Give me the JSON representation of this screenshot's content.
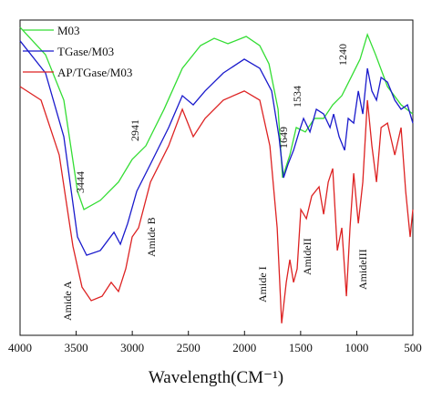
{
  "chart_data": {
    "type": "line",
    "x_label": "Wavelength(CM⁻¹)",
    "xlim": [
      4000,
      500
    ],
    "xticks": [
      4000,
      3500,
      3000,
      2500,
      2000,
      1500,
      1000,
      500
    ],
    "ylim": [
      0,
      100
    ],
    "legend": "upper-left",
    "series": [
      {
        "name": "M03",
        "color": "#33dd33",
        "x": [
          4000,
          3773,
          3610,
          3488,
          3431,
          3285,
          3123,
          3001,
          2879,
          2717,
          2554,
          2392,
          2270,
          2148,
          1985,
          1864,
          1782,
          1701,
          1661,
          1596,
          1539,
          1458,
          1376,
          1295,
          1214,
          1133,
          1051,
          970,
          905,
          832,
          726,
          605,
          500
        ],
        "values": [
          97.7,
          89.0,
          74.6,
          45.7,
          39.9,
          42.8,
          48.6,
          55.8,
          60.1,
          71.7,
          84.7,
          91.9,
          94.2,
          92.5,
          94.8,
          91.9,
          86.1,
          71.7,
          50.0,
          57.2,
          65.9,
          64.5,
          68.8,
          68.8,
          73.1,
          76.0,
          81.8,
          87.6,
          95.4,
          89.0,
          78.9,
          73.1,
          70.2
        ]
      },
      {
        "name": "TGase/M03",
        "color": "#1a1acc",
        "x": [
          4000,
          3773,
          3610,
          3488,
          3407,
          3285,
          3163,
          3106,
          3041,
          2960,
          2838,
          2676,
          2554,
          2457,
          2351,
          2189,
          2002,
          1864,
          1758,
          1693,
          1652,
          1612,
          1563,
          1514,
          1474,
          1417,
          1360,
          1295,
          1238,
          1206,
          1157,
          1108,
          1076,
          1027,
          986,
          946,
          905,
          865,
          824,
          783,
          726,
          661,
          605,
          548,
          500
        ],
        "values": [
          93.4,
          83.2,
          63.0,
          31.2,
          25.4,
          26.9,
          32.7,
          28.9,
          35.5,
          45.7,
          54.3,
          65.9,
          76.0,
          73.1,
          77.5,
          83.2,
          87.6,
          84.7,
          77.5,
          63.0,
          50.0,
          54.3,
          58.7,
          64.5,
          68.8,
          64.5,
          71.7,
          70.2,
          65.9,
          70.2,
          63.0,
          58.7,
          68.8,
          67.3,
          77.5,
          70.2,
          84.7,
          77.5,
          74.6,
          81.8,
          80.3,
          74.6,
          71.7,
          73.1,
          67.3
        ]
      },
      {
        "name": "AP/TGase/M03",
        "color": "#dd2222",
        "x": [
          4000,
          3813,
          3651,
          3529,
          3448,
          3366,
          3269,
          3188,
          3123,
          3058,
          3001,
          2944,
          2838,
          2676,
          2554,
          2457,
          2351,
          2189,
          2002,
          1864,
          1774,
          1709,
          1669,
          1628,
          1596,
          1563,
          1531,
          1498,
          1449,
          1401,
          1336,
          1295,
          1254,
          1214,
          1173,
          1133,
          1092,
          1060,
          1027,
          986,
          946,
          905,
          865,
          824,
          783,
          726,
          661,
          605,
          564,
          524,
          500
        ],
        "values": [
          78.9,
          74.6,
          57.2,
          28.3,
          15.3,
          11.0,
          12.4,
          16.8,
          13.9,
          21.1,
          31.2,
          34.1,
          48.6,
          60.1,
          71.7,
          63.0,
          68.8,
          74.6,
          77.5,
          74.6,
          60.1,
          34.1,
          3.8,
          16.8,
          24.0,
          16.8,
          21.1,
          39.9,
          37.0,
          44.2,
          47.1,
          38.4,
          48.6,
          52.9,
          26.9,
          34.1,
          12.4,
          34.1,
          51.4,
          35.5,
          48.6,
          74.6,
          60.1,
          48.6,
          65.9,
          67.3,
          57.2,
          65.9,
          45.7,
          31.2,
          39.9
        ]
      }
    ],
    "annotations": [
      "3444",
      "2941",
      "Amide A",
      "Amide B",
      "Amide I",
      "1649",
      "1534",
      "AmideII",
      "1240",
      "AmideIII"
    ]
  }
}
